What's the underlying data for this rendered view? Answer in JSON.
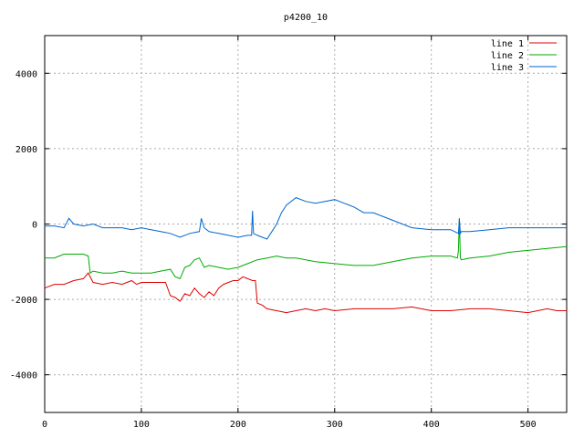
{
  "chart_data": {
    "type": "line",
    "title": "p4200_10",
    "xlabel": "",
    "ylabel": "",
    "xlim": [
      0,
      540
    ],
    "ylim": [
      -5000,
      5000
    ],
    "x_ticks": [
      0,
      100,
      200,
      300,
      400,
      500
    ],
    "y_ticks": [
      -4000,
      -2000,
      0,
      2000,
      4000
    ],
    "grid": true,
    "legend_position": "top-right",
    "series": [
      {
        "name": "line 1",
        "color": "#dd0000",
        "x": [
          0,
          10,
          20,
          30,
          40,
          45,
          50,
          60,
          70,
          80,
          90,
          95,
          100,
          110,
          120,
          125,
          130,
          135,
          140,
          145,
          150,
          155,
          160,
          165,
          170,
          175,
          180,
          185,
          190,
          195,
          200,
          205,
          210,
          215,
          218,
          220,
          225,
          230,
          240,
          250,
          260,
          270,
          280,
          290,
          300,
          320,
          340,
          360,
          380,
          400,
          420,
          440,
          460,
          480,
          500,
          510,
          520,
          530,
          540
        ],
        "y": [
          -1700,
          -1600,
          -1600,
          -1500,
          -1450,
          -1300,
          -1550,
          -1600,
          -1550,
          -1600,
          -1500,
          -1600,
          -1550,
          -1550,
          -1550,
          -1550,
          -1900,
          -1950,
          -2050,
          -1850,
          -1900,
          -1700,
          -1850,
          -1950,
          -1800,
          -1900,
          -1700,
          -1600,
          -1550,
          -1500,
          -1500,
          -1400,
          -1450,
          -1500,
          -1500,
          -2100,
          -2150,
          -2250,
          -2300,
          -2350,
          -2300,
          -2250,
          -2300,
          -2250,
          -2300,
          -2250,
          -2250,
          -2250,
          -2200,
          -2300,
          -2300,
          -2250,
          -2250,
          -2300,
          -2350,
          -2300,
          -2250,
          -2300,
          -2300
        ]
      },
      {
        "name": "line 2",
        "color": "#00aa00",
        "x": [
          0,
          10,
          20,
          30,
          40,
          45,
          47,
          50,
          60,
          70,
          80,
          90,
          100,
          110,
          120,
          130,
          135,
          140,
          145,
          150,
          155,
          160,
          165,
          170,
          180,
          190,
          200,
          210,
          220,
          230,
          240,
          250,
          260,
          280,
          300,
          320,
          340,
          360,
          380,
          400,
          410,
          420,
          427,
          428,
          429,
          430,
          431,
          440,
          460,
          480,
          500,
          520,
          540
        ],
        "y": [
          -900,
          -900,
          -800,
          -800,
          -800,
          -850,
          -1300,
          -1250,
          -1300,
          -1300,
          -1250,
          -1300,
          -1300,
          -1300,
          -1250,
          -1200,
          -1400,
          -1450,
          -1150,
          -1100,
          -950,
          -900,
          -1150,
          -1100,
          -1150,
          -1200,
          -1150,
          -1050,
          -950,
          -900,
          -850,
          -900,
          -900,
          -1000,
          -1050,
          -1100,
          -1100,
          -1000,
          -900,
          -850,
          -850,
          -850,
          -900,
          -700,
          150,
          -900,
          -950,
          -900,
          -850,
          -750,
          -700,
          -650,
          -600
        ]
      },
      {
        "name": "line 3",
        "color": "#0066cc",
        "x": [
          0,
          10,
          20,
          25,
          30,
          40,
          50,
          60,
          70,
          80,
          90,
          100,
          110,
          120,
          130,
          140,
          150,
          160,
          162,
          165,
          170,
          180,
          190,
          200,
          210,
          214,
          215,
          216,
          220,
          230,
          235,
          240,
          245,
          250,
          260,
          270,
          280,
          290,
          300,
          310,
          320,
          330,
          340,
          360,
          380,
          400,
          420,
          428,
          429,
          430,
          431,
          440,
          460,
          480,
          500,
          520,
          540
        ],
        "y": [
          -50,
          -50,
          -100,
          150,
          0,
          -50,
          0,
          -100,
          -100,
          -100,
          -150,
          -100,
          -150,
          -200,
          -250,
          -350,
          -250,
          -200,
          150,
          -100,
          -200,
          -250,
          -300,
          -350,
          -300,
          -300,
          350,
          -250,
          -300,
          -400,
          -200,
          0,
          300,
          500,
          700,
          600,
          550,
          600,
          650,
          550,
          450,
          300,
          300,
          100,
          -100,
          -150,
          -150,
          -250,
          150,
          -250,
          -200,
          -200,
          -150,
          -100,
          -100,
          -100,
          -100
        ]
      }
    ]
  }
}
